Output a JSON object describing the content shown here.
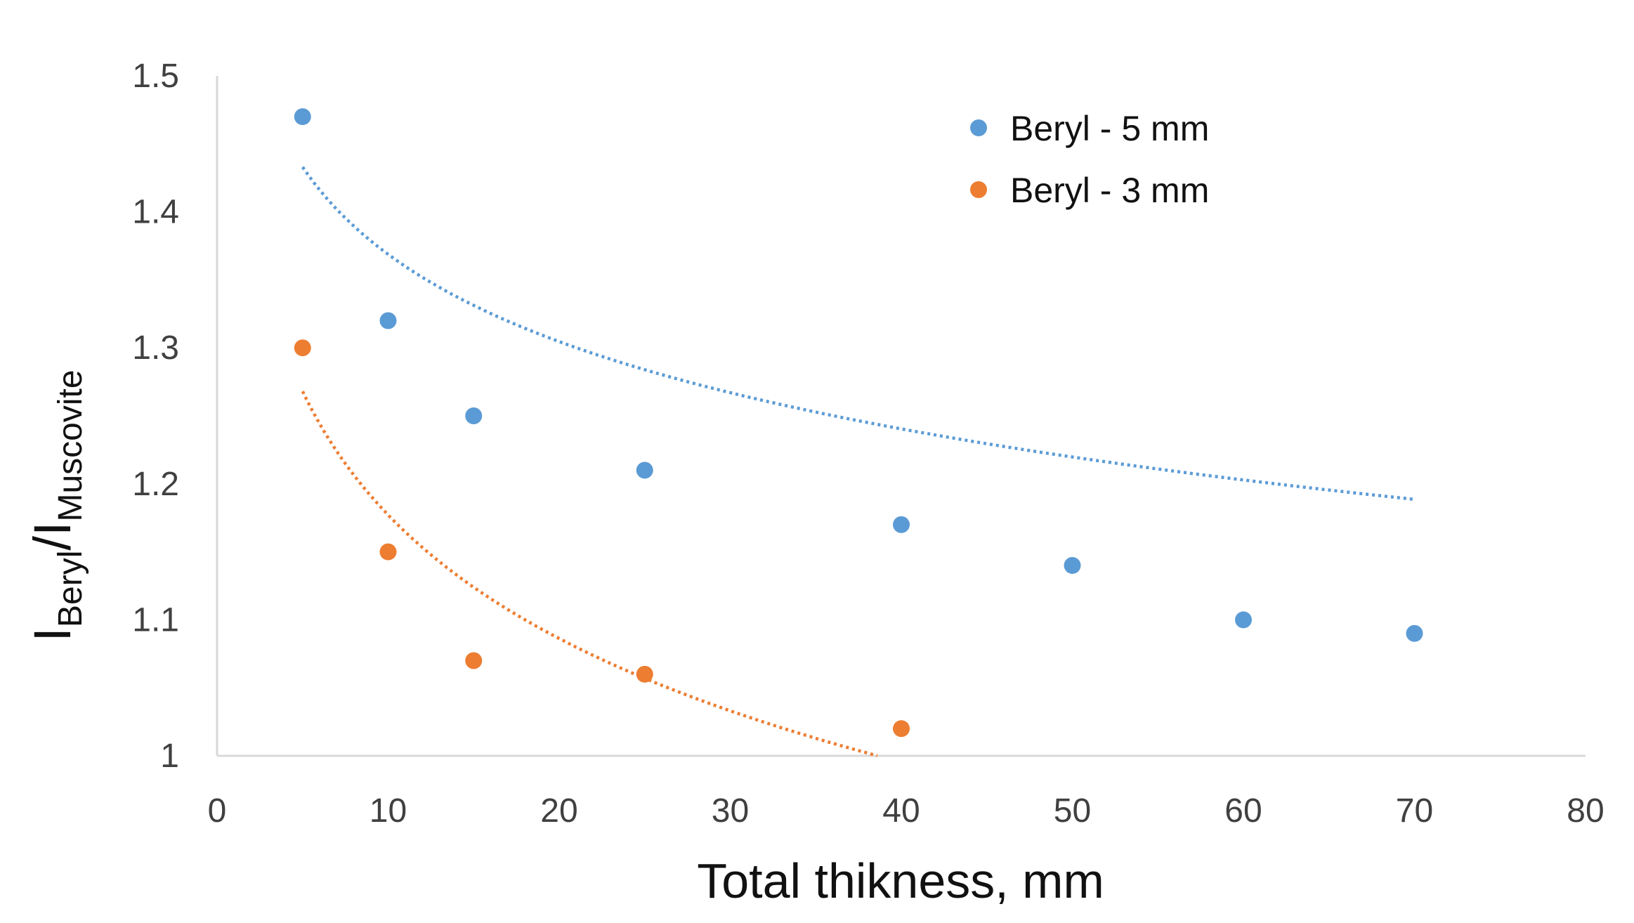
{
  "chart_data": {
    "type": "scatter",
    "title": "",
    "xlabel": "Total thikness,  mm",
    "ylabel": {
      "main": "I",
      "sub1": "Beryl",
      "slash": "/I",
      "sub2": "Muscovite"
    },
    "xlim": [
      0,
      80
    ],
    "ylim": [
      1,
      1.5
    ],
    "xticks": [
      0,
      10,
      20,
      30,
      40,
      50,
      60,
      70,
      80
    ],
    "xtick_labels": [
      "0",
      "10",
      "20",
      "30",
      "40",
      "50",
      "60",
      "70",
      "80"
    ],
    "yticks": [
      1,
      1.1,
      1.2,
      1.3,
      1.4,
      1.5
    ],
    "ytick_labels": [
      "1",
      "1.1",
      "1.2",
      "1.3",
      "1.4",
      "1.5"
    ],
    "grid": false,
    "legend_position": "top-right",
    "series": [
      {
        "name": "Beryl - 5 mm",
        "color": "#5B9BD5",
        "x": [
          5,
          10,
          15,
          25,
          40,
          50,
          60,
          70
        ],
        "y": [
          1.47,
          1.32,
          1.25,
          1.21,
          1.17,
          1.14,
          1.1,
          1.09
        ],
        "trendline": {
          "type": "logarithmic",
          "x_range": [
            5,
            70
          ],
          "a": 1.582,
          "b": -0.0926
        }
      },
      {
        "name": "Beryl - 3 mm",
        "color": "#ED7D31",
        "x": [
          5,
          10,
          15,
          25,
          40
        ],
        "y": [
          1.3,
          1.15,
          1.07,
          1.06,
          1.02
        ],
        "trendline": {
          "type": "logarithmic",
          "x_range": [
            5,
            40
          ],
          "a": 1.479,
          "b": -0.1311
        }
      }
    ]
  }
}
